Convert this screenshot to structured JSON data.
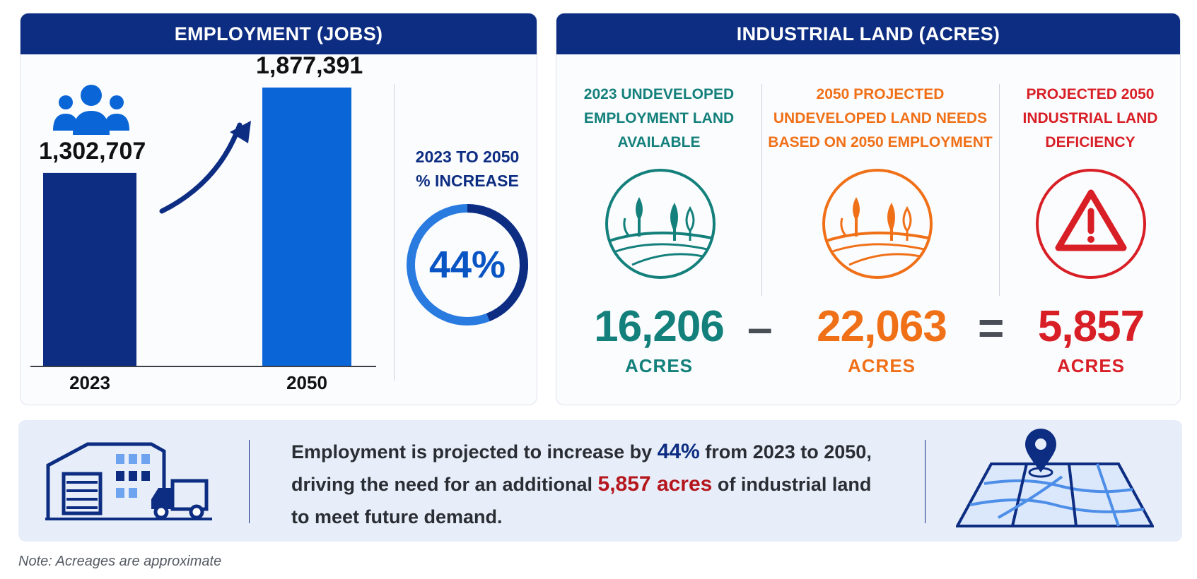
{
  "employment": {
    "title": "EMPLOYMENT (JOBS)",
    "increase_label_line1": "2023 TO 2050",
    "increase_label_line2": "% INCREASE",
    "increase_value": "44%",
    "increase_fraction": 0.44,
    "icon": "people-group-icon"
  },
  "chart_data": {
    "type": "bar",
    "title": "EMPLOYMENT (JOBS)",
    "categories": [
      "2023",
      "2050"
    ],
    "values": [
      1302707,
      1877391
    ],
    "value_labels": [
      "1,302,707",
      "1,877,391"
    ],
    "ylim": [
      0,
      2100000
    ],
    "grid": false
  },
  "industrial": {
    "title": "INDUSTRIAL LAND (ACRES)",
    "columns": [
      {
        "head_lines": [
          "2023 UNDEVELOPED",
          "EMPLOYMENT LAND",
          "AVAILABLE"
        ],
        "value": "16,206",
        "unit": "ACRES",
        "color": "#14807b",
        "icon": "trees-landscape-icon"
      },
      {
        "head_lines": [
          "2050 PROJECTED",
          "UNDEVELOPED LAND NEEDS",
          "BASED ON 2050 EMPLOYMENT"
        ],
        "value": "22,063",
        "unit": "ACRES",
        "color": "#f07018",
        "icon": "trees-landscape-icon"
      },
      {
        "head_lines": [
          "PROJECTED 2050",
          "INDUSTRIAL LAND",
          "DEFICIENCY"
        ],
        "value": "5,857",
        "unit": "ACRES",
        "color": "#d81f26",
        "icon": "warning-triangle-icon"
      }
    ],
    "op_minus": "–",
    "op_equals": "="
  },
  "summary": {
    "part1": "Employment is projected to increase by ",
    "highlight1": "44%",
    "part2": " from 2023 to 2050,",
    "part3": "driving the need for an additional ",
    "highlight2": "5,857 acres",
    "part4": " of industrial land",
    "part5": "to meet future demand."
  },
  "note": "Note: Acreages are approximate",
  "colors": {
    "navy": "#0d2d82",
    "blue": "#0a66d6",
    "teal": "#14807b",
    "orange": "#f07018",
    "red": "#d81f26"
  }
}
